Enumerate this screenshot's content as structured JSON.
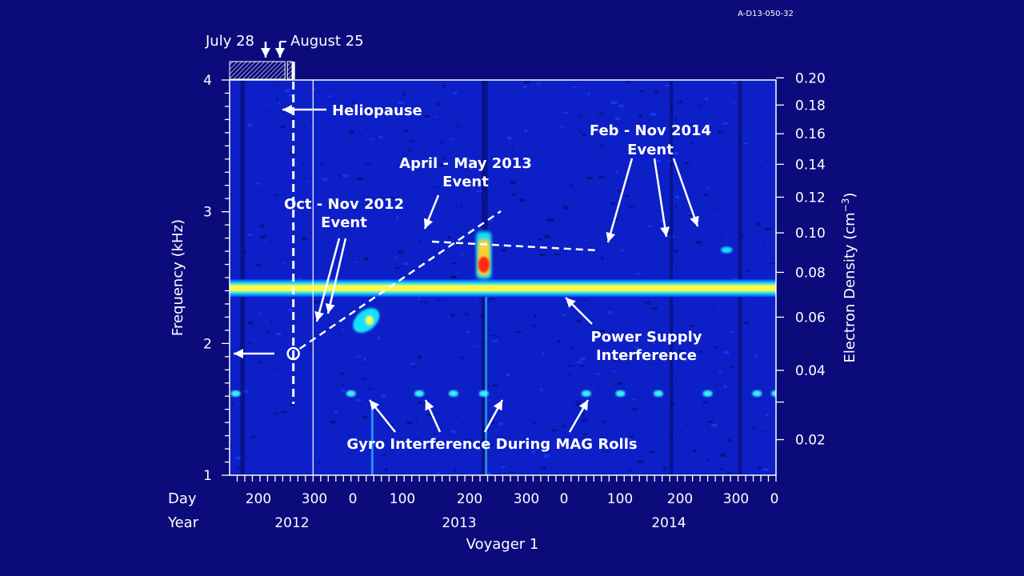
{
  "figure_code": "A-D13-050-32",
  "chart_data": {
    "type": "heatmap",
    "title": "",
    "xlabel": "Voyager 1",
    "ylabel_left": "Frequency (kHz)",
    "ylabel_right": "Electron Density (cm⁻³)",
    "ylabel_right_base": "Electron Density (cm",
    "ylabel_right_sup": "−3",
    "ylabel_right_close": ")",
    "x_day_row_label": "Day",
    "x_year_row_label": "Year",
    "x_range_days": [
      -110,
      610
    ],
    "x_day_ticks": [
      {
        "offset": -50,
        "label": "200"
      },
      {
        "offset": 50,
        "label": "300"
      },
      {
        "offset": 116,
        "label": "0"
      },
      {
        "offset": 216,
        "label": "100"
      },
      {
        "offset": 316,
        "label": "200"
      },
      {
        "offset": 416,
        "label": "300"
      },
      {
        "offset": 481,
        "label": "0"
      },
      {
        "offset": 581,
        "label": "100"
      },
      {
        "offset": 681,
        "label": "200"
      },
      {
        "offset": 781,
        "label": "300"
      },
      {
        "offset": 846,
        "label": "0"
      }
    ],
    "x_year_labels": [
      {
        "offset": 0,
        "label": "2012"
      },
      {
        "offset": 265,
        "label": "2013"
      },
      {
        "offset": 630,
        "label": "2014"
      }
    ],
    "y_left_range": [
      1,
      4
    ],
    "y_left_ticks": [
      {
        "value": 1,
        "label": "1"
      },
      {
        "value": 2,
        "label": "2"
      },
      {
        "value": 3,
        "label": "3"
      },
      {
        "value": 4,
        "label": "4"
      }
    ],
    "y_right_ticks": [
      {
        "density": 0.2,
        "label": "0.20"
      },
      {
        "density": 0.18,
        "label": "0.18"
      },
      {
        "density": 0.16,
        "label": "0.16"
      },
      {
        "density": 0.14,
        "label": "0.14"
      },
      {
        "density": 0.12,
        "label": "0.12"
      },
      {
        "density": 0.1,
        "label": "0.10"
      },
      {
        "density": 0.08,
        "label": "0.08"
      },
      {
        "density": 0.06,
        "label": "0.06"
      },
      {
        "density": 0.04,
        "label": "0.04"
      },
      {
        "density": 0.03,
        "label": ""
      },
      {
        "density": 0.02,
        "label": "0.02"
      }
    ],
    "no_data_after_offset": 795,
    "heliopause_offset": -26,
    "heliopause_label": "Heliopause",
    "helio_marker_freq_khz": 1.93,
    "helio_marker_date_offsets": [
      {
        "offset": -37,
        "label": "July 28"
      },
      {
        "offset": -26,
        "label": "August 25"
      }
    ],
    "power_supply_freq_khz": 2.42,
    "events": [
      {
        "name": "Oct - Nov 2012",
        "label_line1": "Oct - Nov 2012",
        "label_line2": "Event",
        "x_range": [
          50,
          90
        ],
        "freq_range": [
          2.1,
          2.25
        ]
      },
      {
        "name": "April - May 2013",
        "label_line1": "April - May 2013",
        "label_line2": "Event",
        "x_range": [
          215,
          235
        ],
        "freq_range": [
          2.55,
          2.85
        ]
      },
      {
        "name": "Feb - Nov 2014",
        "label_line1": "Feb - Nov 2014",
        "label_line2": "Event",
        "x_range": [
          620,
          795
        ],
        "freq_range": [
          2.6,
          3.0
        ]
      }
    ],
    "trend_line_points": [
      [
        -26,
        1.93
      ],
      [
        400,
        3.0
      ]
    ],
    "density_trend_points": [
      [
        235,
        2.76
      ],
      [
        545,
        2.71
      ]
    ],
    "power_supply_label_line1": "Power Supply",
    "power_supply_label_line2": "Interference",
    "gyro_label": "Gyro Interference During MAG Rolls",
    "gyro_freq_khz": 1.62
  },
  "colors": {
    "background": "#0b0b7c",
    "spectrogram_base": "#0d1fc6",
    "no_data": "#000000",
    "axis": "#ffffff",
    "band_core": "#ffff40",
    "band_edge": "#10d0ff",
    "event_hot": "#ff2a10"
  }
}
